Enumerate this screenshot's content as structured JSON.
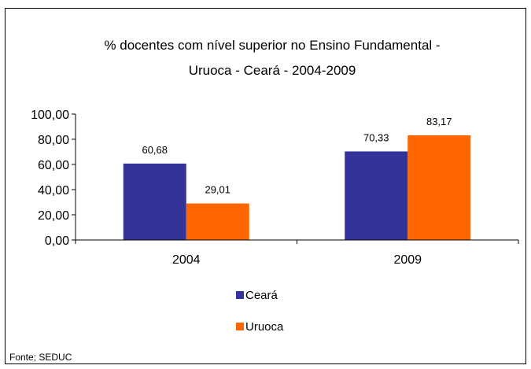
{
  "chart_data": {
    "type": "bar",
    "title_lines": [
      "% docentes com nível superior no Ensino Fundamental -",
      "Uruoca - Ceará - 2004-2009"
    ],
    "categories": [
      "2004",
      "2009"
    ],
    "series": [
      {
        "name": "Ceará",
        "values": [
          60.68,
          70.33
        ],
        "labels": [
          "60,68",
          "70,33"
        ],
        "color": "#333399"
      },
      {
        "name": "Uruoca",
        "values": [
          29.01,
          83.17
        ],
        "labels": [
          "29,01",
          "83,17"
        ],
        "color": "#FF6600"
      }
    ],
    "ylim": [
      0,
      100
    ],
    "yticks": [
      0,
      20,
      40,
      60,
      80,
      100
    ],
    "ytick_labels": [
      "0,00",
      "20,00",
      "40,00",
      "60,00",
      "80,00",
      "100,00"
    ],
    "xlabel": "",
    "ylabel": "",
    "grid": false,
    "legend_position": "bottom-center",
    "source": "Fonte; SEDUC"
  }
}
